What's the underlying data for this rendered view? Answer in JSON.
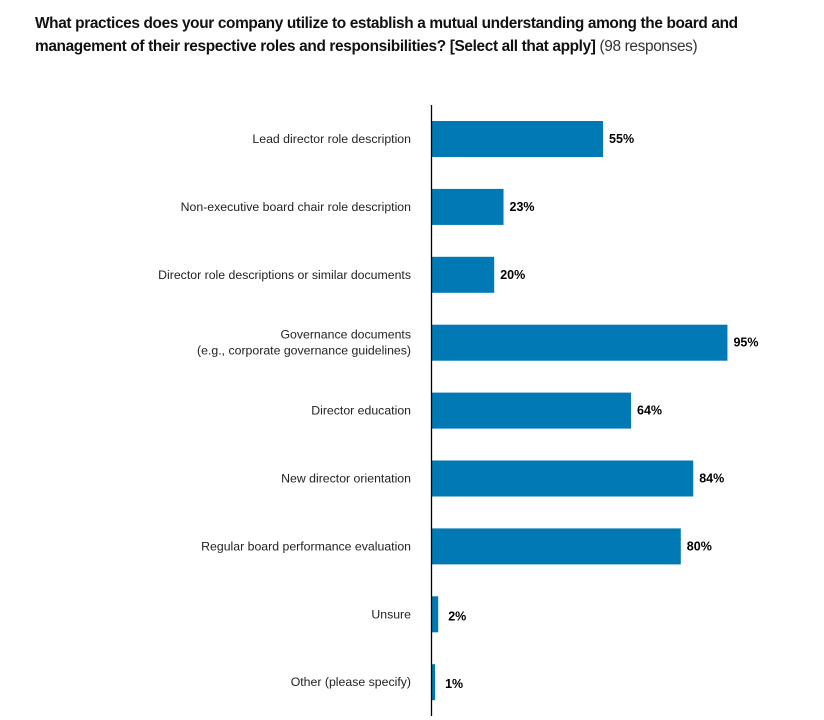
{
  "chart_data": {
    "type": "bar",
    "orientation": "horizontal",
    "title": "What practices does your company utilize to establish a mutual understanding among the board and management of their respective roles and responsibilities? [Select all that apply]",
    "subtitle": "(98 responses)",
    "xlabel": "",
    "ylabel": "",
    "xlim": [
      0,
      100
    ],
    "grid": false,
    "categories": [
      "Lead director role description",
      "Non-executive board chair role description",
      "Director role descriptions or similar documents",
      "Governance documents\n(e.g., corporate governance guidelines)",
      "Director education",
      "New director orientation",
      "Regular board performance evaluation",
      "Unsure",
      "Other (please specify)"
    ],
    "values": [
      55,
      23,
      20,
      95,
      64,
      84,
      80,
      2,
      1
    ],
    "data_labels": [
      "55%",
      "23%",
      "20%",
      "95%",
      "64%",
      "84%",
      "80%",
      "2%",
      "1%"
    ],
    "bar_color": "#0079B4",
    "axis_color": "#000000"
  }
}
